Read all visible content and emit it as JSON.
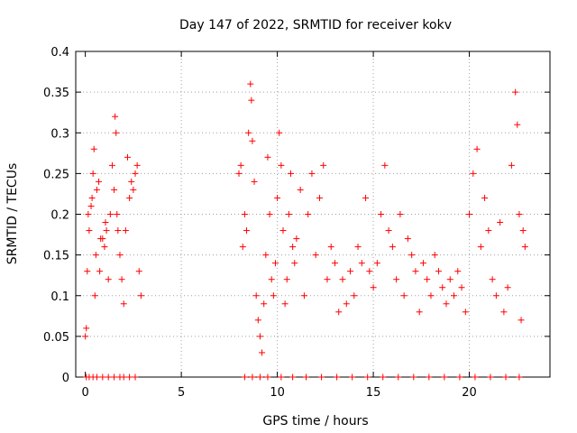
{
  "chart_data": {
    "type": "scatter",
    "title": "Day 147 of 2022, SRMTID for receiver kokv",
    "xlabel": "GPS time / hours",
    "ylabel": "SRMTID / TECUs",
    "xlim": [
      -0.5,
      24.2
    ],
    "ylim": [
      0,
      0.4
    ],
    "xticks": [
      0,
      5,
      10,
      15,
      20
    ],
    "xtick_labels": [
      "0",
      "5",
      "10",
      "15",
      "20"
    ],
    "yticks": [
      0,
      0.05,
      0.1,
      0.15,
      0.2,
      0.25,
      0.3,
      0.35,
      0.4
    ],
    "ytick_labels": [
      "0",
      "0.05",
      "0.1",
      "0.15",
      "0.2",
      "0.25",
      "0.3",
      "0.35",
      "0.4"
    ],
    "grid": true,
    "marker": "+",
    "color": "#ff0000",
    "series": [
      {
        "name": "SRMTID",
        "x": [
          0.0,
          0.05,
          0.1,
          0.15,
          0.2,
          0.3,
          0.35,
          0.4,
          0.45,
          0.5,
          0.55,
          0.6,
          0.7,
          0.75,
          0.8,
          0.9,
          1.0,
          1.05,
          1.1,
          1.2,
          1.3,
          1.4,
          1.5,
          1.55,
          1.6,
          1.65,
          1.7,
          1.8,
          1.9,
          2.0,
          2.1,
          2.2,
          2.3,
          2.4,
          2.5,
          2.6,
          2.7,
          2.8,
          2.9,
          8.0,
          8.1,
          8.2,
          8.3,
          8.4,
          8.5,
          8.6,
          8.65,
          8.7,
          8.8,
          8.9,
          9.0,
          9.1,
          9.2,
          9.3,
          9.4,
          9.5,
          9.6,
          9.7,
          9.8,
          9.9,
          10.0,
          10.1,
          10.2,
          10.3,
          10.4,
          10.5,
          10.6,
          10.7,
          10.8,
          10.9,
          11.0,
          11.2,
          11.4,
          11.6,
          11.8,
          12.0,
          12.2,
          12.4,
          12.6,
          12.8,
          13.0,
          13.2,
          13.4,
          13.6,
          13.8,
          14.0,
          14.2,
          14.4,
          14.6,
          14.8,
          15.0,
          15.2,
          15.4,
          15.6,
          15.8,
          16.0,
          16.2,
          16.4,
          16.6,
          16.8,
          17.0,
          17.2,
          17.4,
          17.6,
          17.8,
          18.0,
          18.2,
          18.4,
          18.6,
          18.8,
          19.0,
          19.2,
          19.4,
          19.6,
          19.8,
          20.0,
          20.2,
          20.4,
          20.6,
          20.8,
          21.0,
          21.2,
          21.4,
          21.6,
          21.8,
          22.0,
          22.2,
          22.4,
          22.5,
          22.6,
          22.7,
          22.8,
          22.9,
          0.05,
          0.2,
          0.4,
          0.6,
          0.9,
          1.2,
          1.5,
          1.8,
          2.0,
          2.3,
          2.6,
          8.3,
          8.7,
          9.1,
          9.5,
          10.2,
          10.8,
          11.5,
          12.3,
          13.1,
          13.9,
          14.7,
          15.5,
          16.3,
          17.1,
          17.9,
          18.7,
          19.5,
          20.3,
          21.1,
          21.9,
          22.6
        ],
        "y": [
          0.05,
          0.06,
          0.13,
          0.2,
          0.18,
          0.21,
          0.22,
          0.25,
          0.28,
          0.1,
          0.15,
          0.23,
          0.24,
          0.13,
          0.17,
          0.17,
          0.16,
          0.19,
          0.18,
          0.12,
          0.2,
          0.26,
          0.23,
          0.32,
          0.3,
          0.2,
          0.18,
          0.15,
          0.12,
          0.09,
          0.18,
          0.27,
          0.22,
          0.24,
          0.23,
          0.25,
          0.26,
          0.13,
          0.1,
          0.25,
          0.26,
          0.16,
          0.2,
          0.18,
          0.3,
          0.36,
          0.34,
          0.29,
          0.24,
          0.1,
          0.07,
          0.05,
          0.03,
          0.09,
          0.15,
          0.27,
          0.2,
          0.12,
          0.1,
          0.14,
          0.22,
          0.3,
          0.26,
          0.18,
          0.09,
          0.12,
          0.2,
          0.25,
          0.16,
          0.14,
          0.17,
          0.23,
          0.1,
          0.2,
          0.25,
          0.15,
          0.22,
          0.26,
          0.12,
          0.16,
          0.14,
          0.08,
          0.12,
          0.09,
          0.13,
          0.1,
          0.16,
          0.14,
          0.22,
          0.13,
          0.11,
          0.14,
          0.2,
          0.26,
          0.18,
          0.16,
          0.12,
          0.2,
          0.1,
          0.17,
          0.15,
          0.13,
          0.08,
          0.14,
          0.12,
          0.1,
          0.15,
          0.13,
          0.11,
          0.09,
          0.12,
          0.1,
          0.13,
          0.11,
          0.08,
          0.2,
          0.25,
          0.28,
          0.16,
          0.22,
          0.18,
          0.12,
          0.1,
          0.19,
          0.08,
          0.11,
          0.26,
          0.35,
          0.31,
          0.2,
          0.07,
          0.18,
          0.16,
          0.0,
          0.0,
          0.0,
          0.0,
          0.0,
          0.0,
          0.0,
          0.0,
          0.0,
          0.0,
          0.0,
          0.0,
          0.0,
          0.0,
          0.0,
          0.0,
          0.0,
          0.0,
          0.0,
          0.0,
          0.0,
          0.0,
          0.0,
          0.0,
          0.0,
          0.0,
          0.0,
          0.0,
          0.0,
          0.0,
          0.0,
          0.0
        ]
      }
    ]
  }
}
